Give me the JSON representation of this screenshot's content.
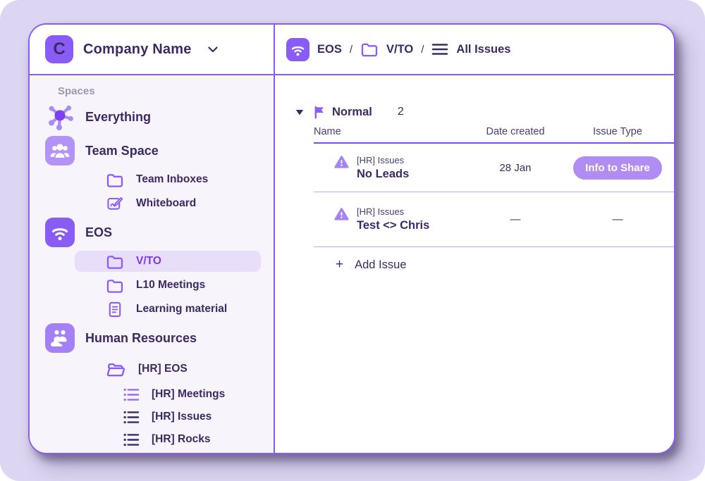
{
  "colors": {
    "accent": "#8a5cf6",
    "dark_text": "#3b2a63",
    "page_bg": "#dcd6f2",
    "sidebar_bg": "#f7f4fc",
    "active_item_bg": "#e8def9",
    "active_item_text": "#7c3aed",
    "badge_bg": "#b18cf2",
    "card_border": "#8a5cf0",
    "header_underline": "#7a4fe0",
    "row_divider": "#bba8ee",
    "muted_label": "#9d97ab",
    "column_text": "#4c3c72"
  },
  "sidebar": {
    "company": {
      "initial": "C",
      "name": "Company Name",
      "chevron_icon": "chevron-down"
    },
    "section_label": "Spaces",
    "items": [
      {
        "label": "Everything",
        "icon": "hub",
        "level": 0,
        "active": false
      },
      {
        "label": "Team Space",
        "icon": "people",
        "level": 0,
        "active": false
      },
      {
        "label": "Team Inboxes",
        "icon": "folder",
        "level": 1,
        "active": false
      },
      {
        "label": "Whiteboard",
        "icon": "whiteboard",
        "level": 1,
        "active": false
      },
      {
        "label": "EOS",
        "icon": "wifi",
        "level": 0,
        "active": false
      },
      {
        "label": "V/TO",
        "icon": "folder",
        "level": 1,
        "active": true
      },
      {
        "label": "L10 Meetings",
        "icon": "folder",
        "level": 1,
        "active": false
      },
      {
        "label": "Learning material",
        "icon": "document",
        "level": 1,
        "active": false
      },
      {
        "label": "Human Resources",
        "icon": "hand-people",
        "level": 0,
        "active": false
      },
      {
        "label": "[HR] EOS",
        "icon": "folder-open",
        "level": 1,
        "active": false
      },
      {
        "label": "[HR] Meetings",
        "icon": "list",
        "level": 2,
        "active": false,
        "icon_color": "#9a6cf5"
      },
      {
        "label": "[HR] Issues",
        "icon": "list",
        "level": 2,
        "active": false,
        "icon_color": "#3b2a63"
      },
      {
        "label": "[HR] Rocks",
        "icon": "list",
        "level": 2,
        "active": false,
        "icon_color": "#3b2a63"
      }
    ]
  },
  "breadcrumb": {
    "separator": "/",
    "items": [
      {
        "label": "EOS",
        "icon": "wifi-app"
      },
      {
        "label": "V/TO",
        "icon": "folder"
      },
      {
        "label": "All Issues",
        "icon": "list-lines"
      }
    ]
  },
  "main": {
    "group": {
      "name": "Normal",
      "count": "2"
    },
    "columns": [
      "Name",
      "Date created",
      "Issue Type"
    ],
    "rows": [
      {
        "category": "[HR] Issues",
        "name": "No Leads",
        "date_created": "28 Jan",
        "issue_type": "Info to Share",
        "has_badge": true
      },
      {
        "category": "[HR] Issues",
        "name": "Test <> Chris",
        "date_created": "—",
        "issue_type": "—",
        "has_badge": false
      }
    ],
    "add_plus": "+",
    "add_label": "Add Issue"
  }
}
